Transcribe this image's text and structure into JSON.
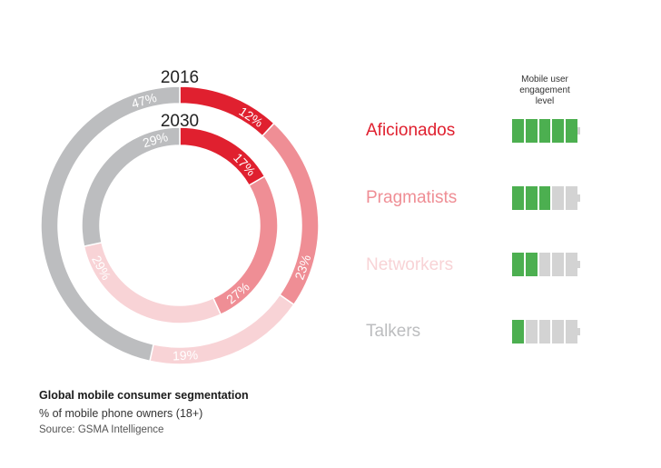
{
  "chart_data": {
    "type": "pie",
    "subtype": "nested-donut",
    "categories": [
      "Aficionados",
      "Pragmatists",
      "Networkers",
      "Talkers"
    ],
    "colors": [
      "#e0202f",
      "#ef8e95",
      "#f8d3d6",
      "#bcbdbf"
    ],
    "series": [
      {
        "name": "2016",
        "values": [
          12,
          23,
          19,
          47
        ],
        "labels": [
          "12%",
          "23%",
          "19%",
          "47%"
        ]
      },
      {
        "name": "2030",
        "values": [
          17,
          27,
          29,
          29
        ],
        "labels": [
          "17%",
          "27%",
          "29%",
          "29%"
        ]
      }
    ]
  },
  "legend": {
    "heading": "Mobile user engagement level",
    "heading_lines": [
      "Mobile user",
      "engagement",
      "level"
    ],
    "items": [
      {
        "label": "Aficionados",
        "color": "#e0202f",
        "engagement": 1.0
      },
      {
        "label": "Pragmatists",
        "color": "#ef8e95",
        "engagement": 0.6
      },
      {
        "label": "Networkers",
        "color": "#f8d3d6",
        "engagement": 0.4
      },
      {
        "label": "Talkers",
        "color": "#bcbdbf",
        "engagement": 0.2
      }
    ]
  },
  "caption": {
    "title": "Global mobile consumer segmentation",
    "subtitle": "% of mobile phone owners (18+)",
    "source": "Source: GSMA Intelligence"
  }
}
